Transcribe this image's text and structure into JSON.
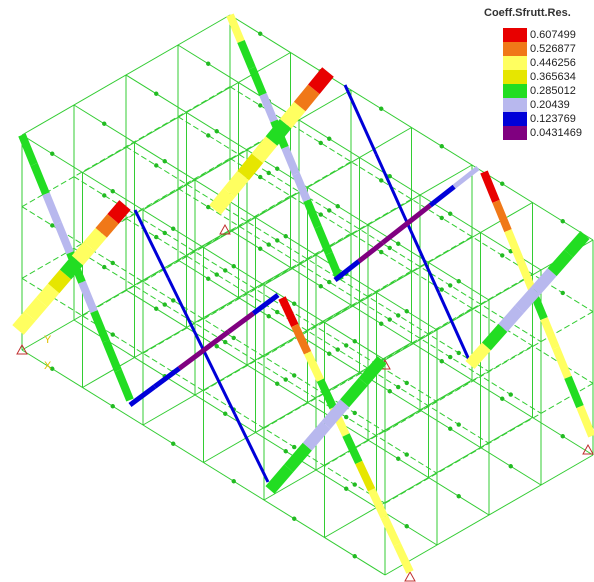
{
  "legend": {
    "title": "Coeff.Sfrutt.Res.",
    "items": [
      {
        "label": "0.607499",
        "color": "#e80000"
      },
      {
        "label": "0.526877",
        "color": "#f07818"
      },
      {
        "label": "0.446256",
        "color": "#ffff60"
      },
      {
        "label": "0.365634",
        "color": "#e6e600"
      },
      {
        "label": "0.285012",
        "color": "#22dd22"
      },
      {
        "label": "0.20439",
        "color": "#b8b8ee"
      },
      {
        "label": "0.123769",
        "color": "#0000d8"
      },
      {
        "label": "0.0431469",
        "color": "#800080"
      }
    ]
  },
  "axes": {
    "y": "Y",
    "x": "X"
  }
}
